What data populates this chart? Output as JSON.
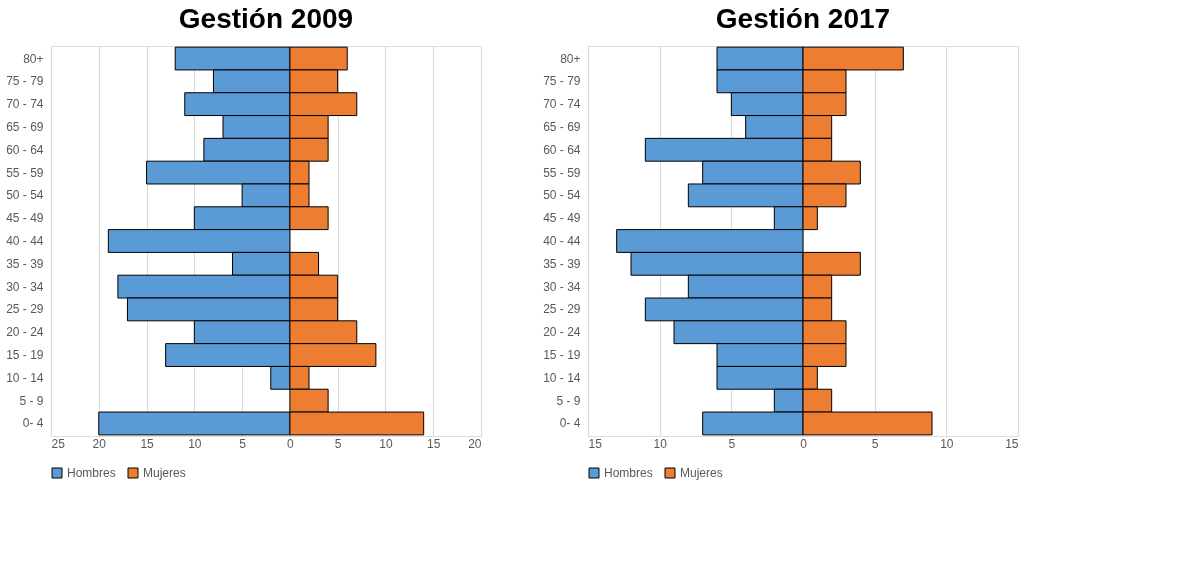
{
  "chart_data": [
    {
      "type": "bar",
      "orientation": "horizontal",
      "title": "Gestión  2009",
      "categories": [
        "80+",
        "75 - 79",
        "70 - 74",
        "65 - 69",
        "60 - 64",
        "55 - 59",
        "50 - 54",
        "45 - 49",
        "40 - 44",
        "35 - 39",
        "30 - 34",
        "25 - 29",
        "20 - 24",
        "15 - 19",
        "10 - 14",
        "5 - 9",
        "0- 4"
      ],
      "series": [
        {
          "name": "Hombres",
          "color": "#5b9bd5",
          "values": [
            -12,
            -8,
            -11,
            -7,
            -9,
            -15,
            -5,
            -10,
            -19,
            -6,
            -18,
            -17,
            -10,
            -13,
            -2,
            null,
            -20
          ]
        },
        {
          "name": "Mujeres",
          "color": "#ed7d31",
          "values": [
            6,
            5,
            7,
            4,
            4,
            2,
            2,
            4,
            null,
            3,
            5,
            5,
            7,
            9,
            2,
            4,
            14
          ]
        }
      ],
      "stacked": true,
      "xlim": [
        -25,
        20
      ],
      "xticks": [
        {
          "value": -25,
          "label": "25"
        },
        {
          "value": -20,
          "label": "20"
        },
        {
          "value": -15,
          "label": "15"
        },
        {
          "value": -10,
          "label": "10"
        },
        {
          "value": -5,
          "label": "5"
        },
        0,
        5,
        10,
        15,
        20
      ],
      "grid": "x",
      "legend": "bottom"
    },
    {
      "type": "bar",
      "orientation": "horizontal",
      "title": "Gestión 2017",
      "categories": [
        "80+",
        "75 - 79",
        "70 - 74",
        "65 - 69",
        "60 - 64",
        "55 - 59",
        "50 - 54",
        "45 - 49",
        "40 - 44",
        "35 - 39",
        "30 - 34",
        "25 - 29",
        "20 - 24",
        "15 - 19",
        "10 - 14",
        "5 - 9",
        "0- 4"
      ],
      "series": [
        {
          "name": "Hombres",
          "color": "#5b9bd5",
          "values": [
            -6,
            -6,
            -5,
            -4,
            -11,
            -7,
            -8,
            -2,
            -13,
            -12,
            -8,
            -11,
            -9,
            -6,
            -6,
            -2,
            -7
          ]
        },
        {
          "name": "Mujeres",
          "color": "#ed7d31",
          "values": [
            7,
            3,
            3,
            2,
            2,
            4,
            3,
            1,
            null,
            4,
            2,
            2,
            3,
            3,
            1,
            2,
            9
          ]
        }
      ],
      "stacked": true,
      "xlim": [
        -15,
        15
      ],
      "xticks": [
        {
          "value": -15,
          "label": "15"
        },
        {
          "value": -10,
          "label": "10"
        },
        {
          "value": -5,
          "label": "5"
        },
        0,
        5,
        10,
        15
      ],
      "grid": "x",
      "legend": "bottom"
    }
  ]
}
